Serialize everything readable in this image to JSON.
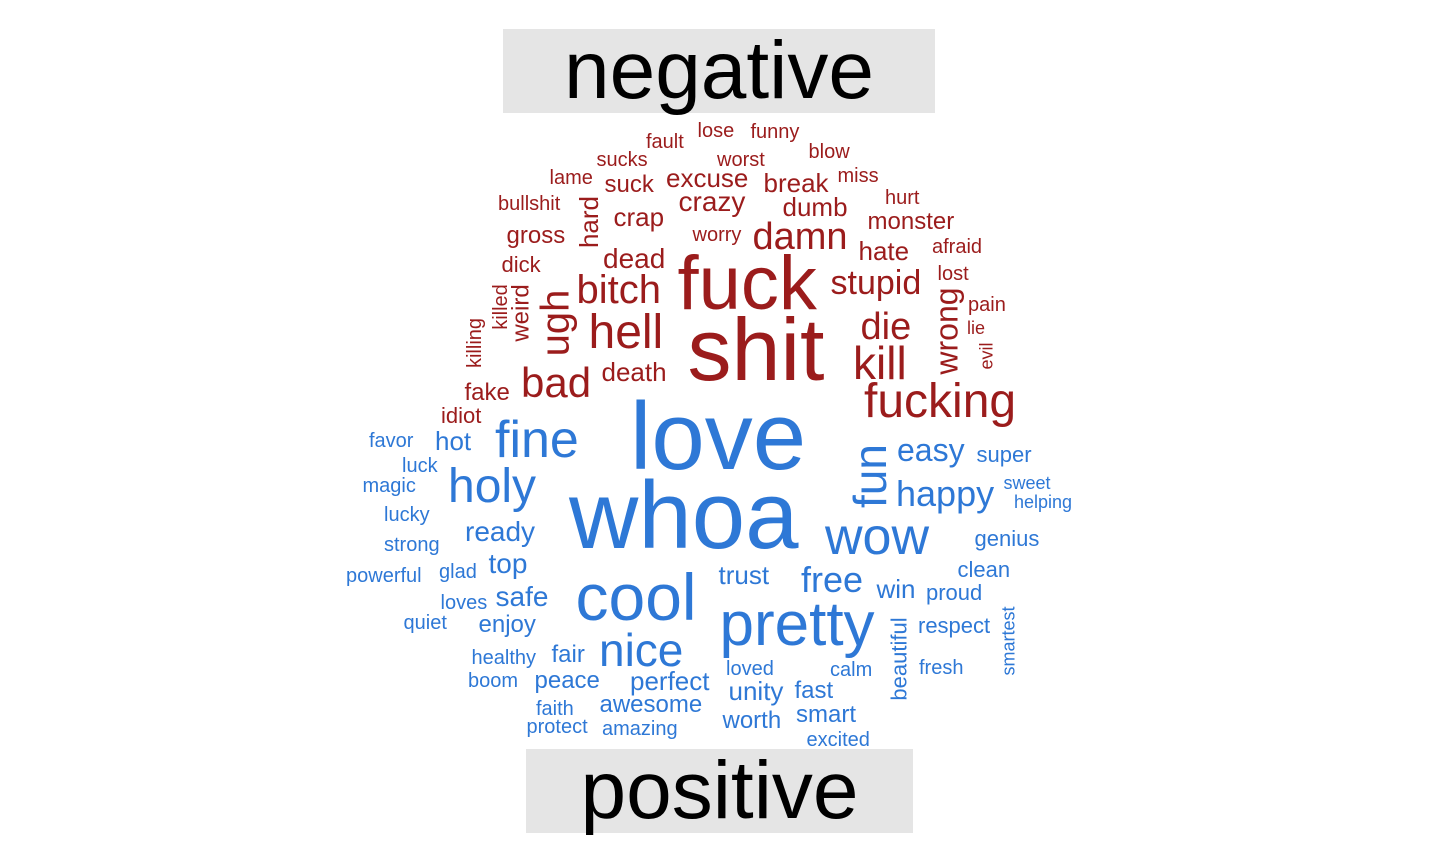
{
  "chart_data": {
    "type": "wordcloud",
    "groups": [
      {
        "label": "negative",
        "color": "#9b1c1c",
        "words": [
          "shit",
          "fuck",
          "fucking",
          "hell",
          "bitch",
          "kill",
          "die",
          "bad",
          "damn",
          "stupid",
          "ugh",
          "wrong",
          "crazy",
          "dead",
          "death",
          "dumb",
          "hate",
          "crap",
          "excuse",
          "break",
          "suck",
          "monster",
          "fake",
          "gross",
          "hard",
          "weird",
          "killed",
          "killing",
          "idiot",
          "dick",
          "worst",
          "fault",
          "lose",
          "funny",
          "sucks",
          "lame",
          "blow",
          "miss",
          "bullshit",
          "hurt",
          "worry",
          "afraid",
          "lost",
          "pain",
          "lie",
          "evil"
        ]
      },
      {
        "label": "positive",
        "color": "#2e78d6",
        "words": [
          "love",
          "whoa",
          "cool",
          "pretty",
          "fine",
          "wow",
          "holy",
          "nice",
          "fun",
          "happy",
          "free",
          "easy",
          "ready",
          "safe",
          "trust",
          "top",
          "hot",
          "win",
          "super",
          "genius",
          "clean",
          "proud",
          "respect",
          "enjoy",
          "fair",
          "perfect",
          "peace",
          "unity",
          "fast",
          "smart",
          "awesome",
          "worth",
          "amazing",
          "loved",
          "calm",
          "fresh",
          "beautiful",
          "smartest",
          "glad",
          "loves",
          "favor",
          "luck",
          "magic",
          "lucky",
          "strong",
          "powerful",
          "quiet",
          "healthy",
          "boom",
          "faith",
          "protect",
          "excited",
          "sweet",
          "helping"
        ]
      }
    ]
  }
}
